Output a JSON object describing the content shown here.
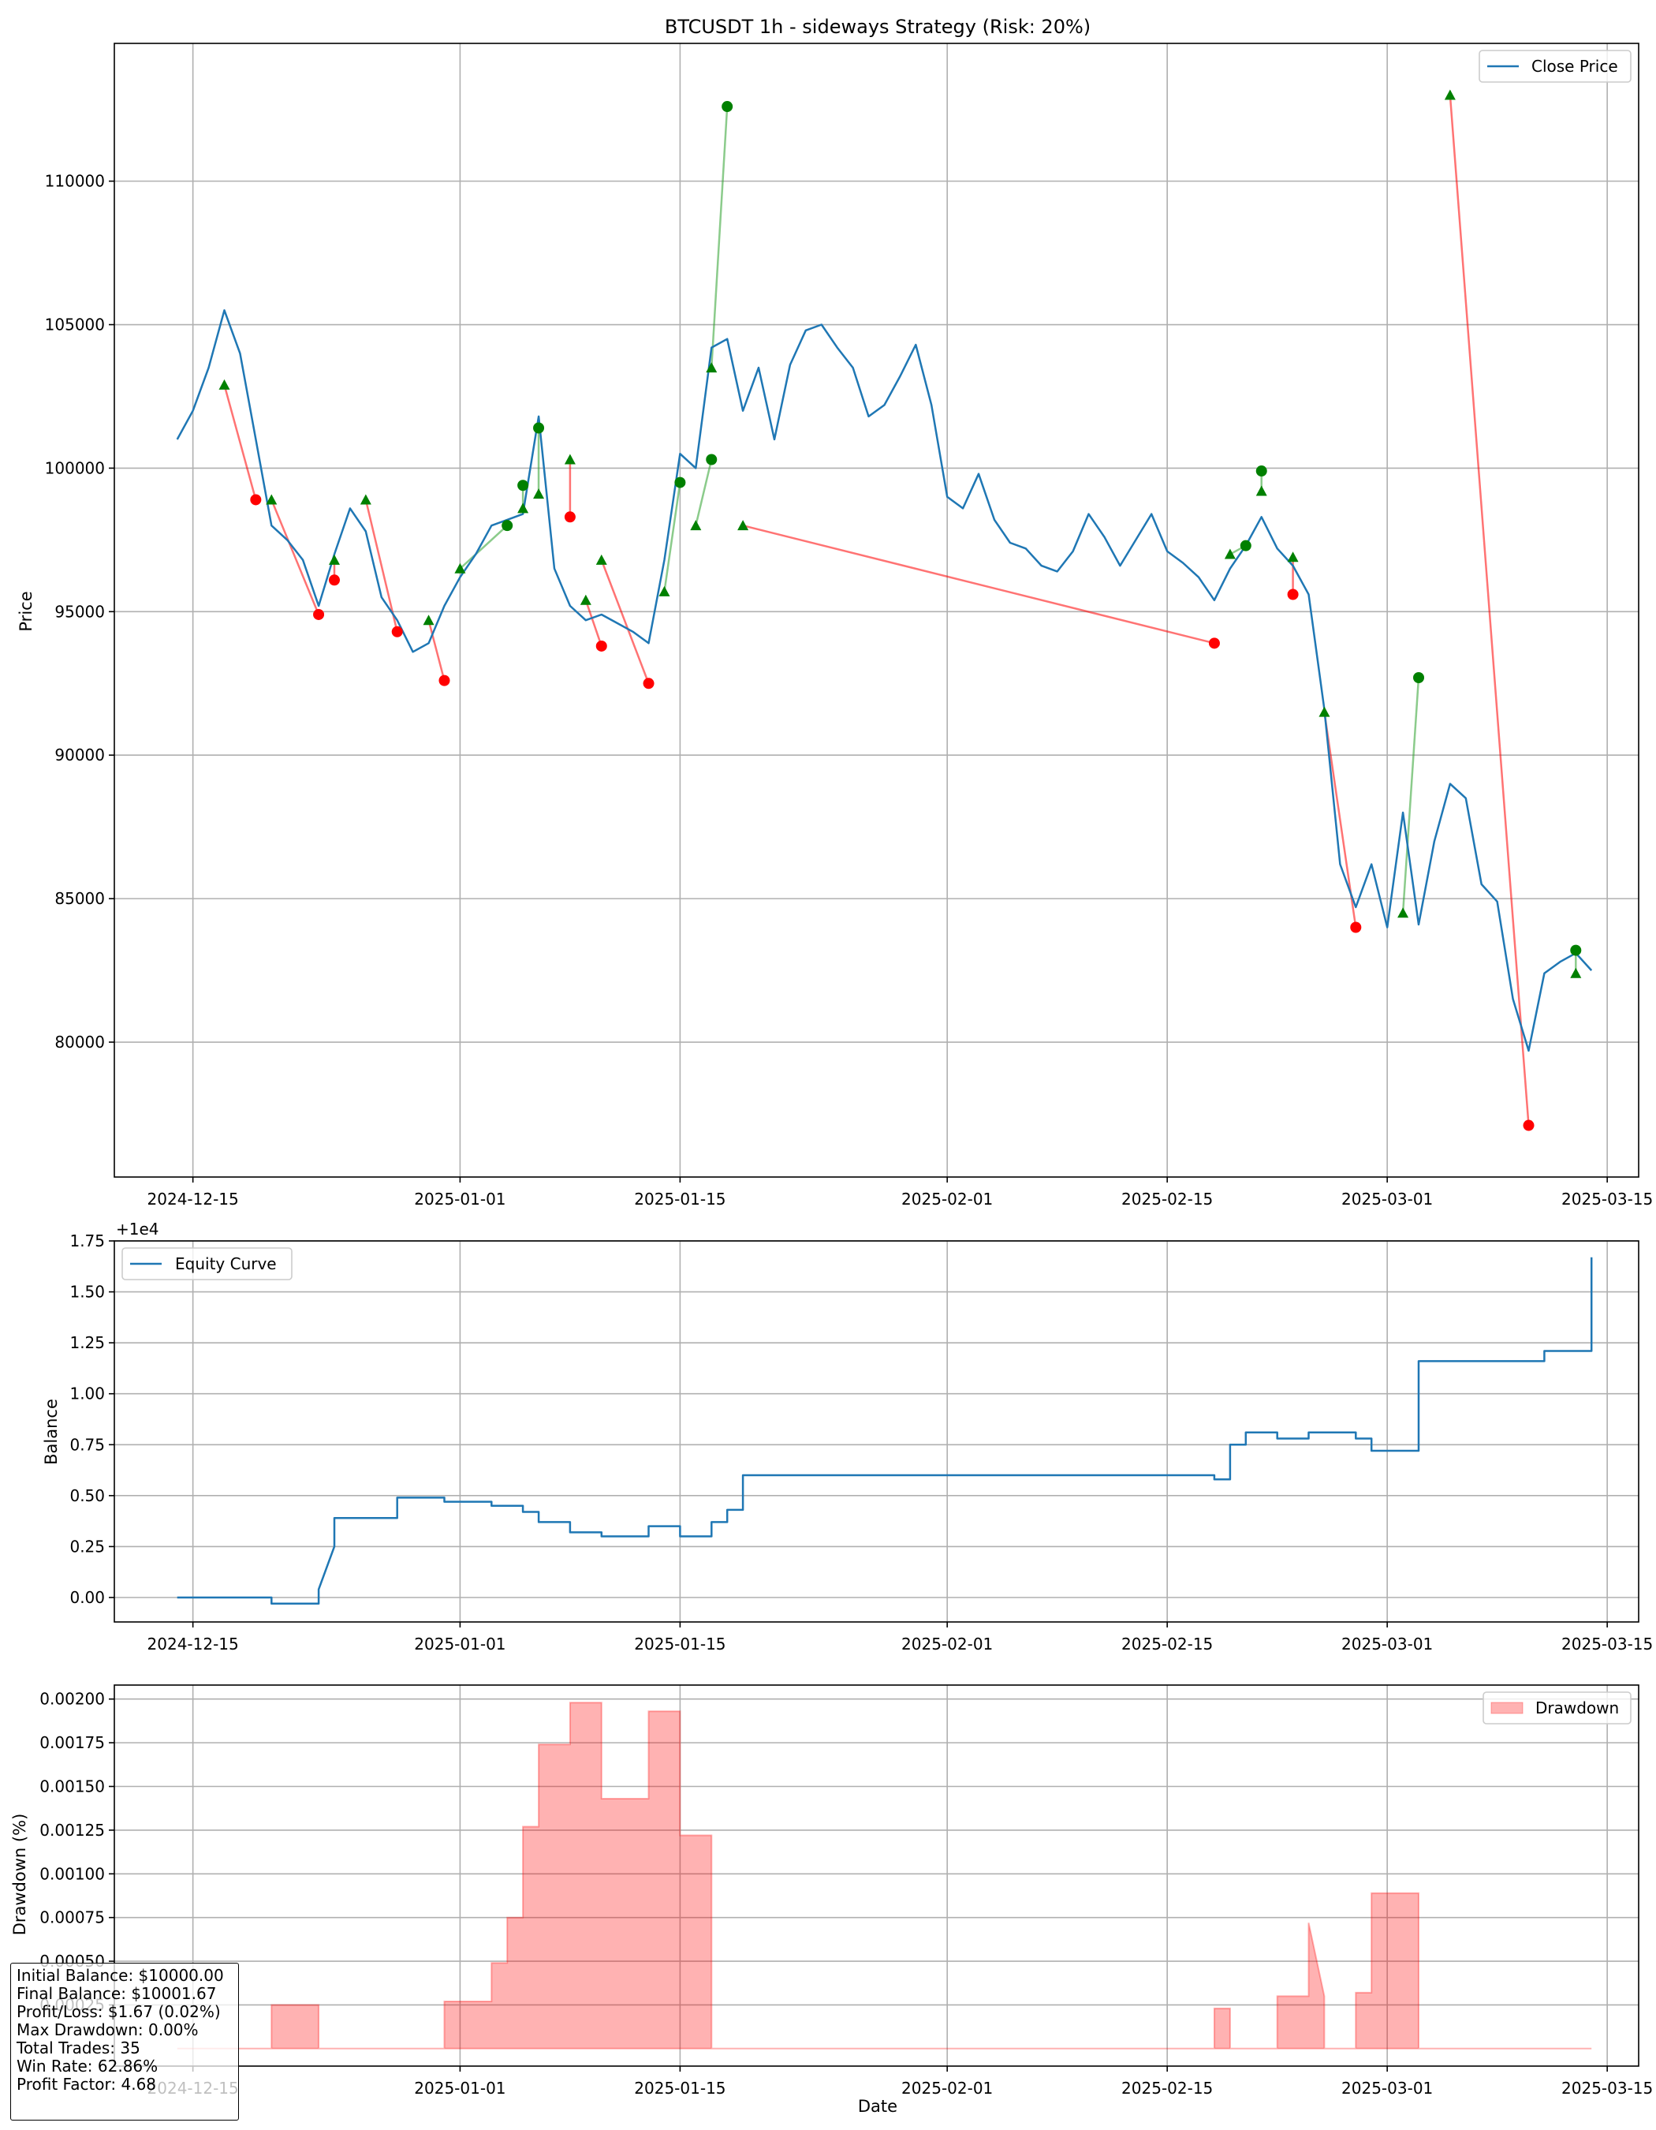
{
  "figure": {
    "title": "BTCUSDT 1h - sideways Strategy (Risk: 20%)"
  },
  "chart_data": [
    {
      "type": "line",
      "title": "BTCUSDT 1h - sideways Strategy (Risk: 20%)",
      "xlabel": "",
      "ylabel": "Price",
      "x_ticks": [
        "2024-12-15",
        "2025-01-01",
        "2025-01-15",
        "2025-02-01",
        "2025-02-15",
        "2025-03-01",
        "2025-03-15"
      ],
      "y_ticks": [
        "80000",
        "85000",
        "90000",
        "95000",
        "100000",
        "105000",
        "110000"
      ],
      "xlim": [
        "2024-12-10",
        "2025-03-17"
      ],
      "ylim": [
        75300,
        114800
      ],
      "grid": true,
      "legend": {
        "position": "top-right",
        "entries": [
          "Close Price"
        ]
      },
      "colors": {
        "price": "#1f77b4",
        "entry_marker": "#008000",
        "exit_marker": "#ff0000",
        "win_line": "#2ca02c",
        "loss_line": "#ff0000"
      },
      "series": [
        {
          "name": "Close Price",
          "x": [
            "2024-12-14",
            "2024-12-15",
            "2024-12-16",
            "2024-12-17",
            "2024-12-18",
            "2024-12-19",
            "2024-12-20",
            "2024-12-21",
            "2024-12-22",
            "2024-12-23",
            "2024-12-24",
            "2024-12-25",
            "2024-12-26",
            "2024-12-27",
            "2024-12-28",
            "2024-12-29",
            "2024-12-30",
            "2024-12-31",
            "2025-01-01",
            "2025-01-02",
            "2025-01-03",
            "2025-01-04",
            "2025-01-05",
            "2025-01-06",
            "2025-01-07",
            "2025-01-08",
            "2025-01-09",
            "2025-01-10",
            "2025-01-11",
            "2025-01-12",
            "2025-01-13",
            "2025-01-14",
            "2025-01-15",
            "2025-01-16",
            "2025-01-17",
            "2025-01-18",
            "2025-01-19",
            "2025-01-20",
            "2025-01-21",
            "2025-01-22",
            "2025-01-23",
            "2025-01-24",
            "2025-01-25",
            "2025-01-26",
            "2025-01-27",
            "2025-01-28",
            "2025-01-29",
            "2025-01-30",
            "2025-01-31",
            "2025-02-01",
            "2025-02-02",
            "2025-02-03",
            "2025-02-04",
            "2025-02-05",
            "2025-02-06",
            "2025-02-07",
            "2025-02-08",
            "2025-02-09",
            "2025-02-10",
            "2025-02-11",
            "2025-02-12",
            "2025-02-13",
            "2025-02-14",
            "2025-02-15",
            "2025-02-16",
            "2025-02-17",
            "2025-02-18",
            "2025-02-19",
            "2025-02-20",
            "2025-02-21",
            "2025-02-22",
            "2025-02-23",
            "2025-02-24",
            "2025-02-25",
            "2025-02-26",
            "2025-02-27",
            "2025-02-28",
            "2025-03-01",
            "2025-03-02",
            "2025-03-03",
            "2025-03-04",
            "2025-03-05",
            "2025-03-06",
            "2025-03-07",
            "2025-03-08",
            "2025-03-09",
            "2025-03-10",
            "2025-03-11",
            "2025-03-12",
            "2025-03-13",
            "2025-03-14"
          ],
          "values": [
            101000,
            102000,
            103500,
            105500,
            104000,
            101000,
            98000,
            97500,
            96800,
            95200,
            97000,
            98600,
            97800,
            95500,
            94700,
            93600,
            93900,
            95200,
            96200,
            97000,
            98000,
            98200,
            98400,
            101800,
            96500,
            95200,
            94700,
            94900,
            94600,
            94300,
            93900,
            96800,
            100500,
            100000,
            104200,
            104500,
            102000,
            103500,
            101000,
            103600,
            104800,
            105000,
            104200,
            103500,
            101800,
            102200,
            103200,
            104300,
            102200,
            99000,
            98600,
            99800,
            98200,
            97400,
            97200,
            96600,
            96400,
            97100,
            98400,
            97600,
            96600,
            97500,
            98400,
            97100,
            96700,
            96200,
            95400,
            96500,
            97300,
            98300,
            97200,
            96600,
            95600,
            91600,
            86200,
            84700,
            86200,
            84000,
            88000,
            84100,
            87000,
            89000,
            88500,
            85500,
            84900,
            81500,
            79700,
            82400,
            82800,
            83100,
            82500
          ]
        }
      ],
      "trades": [
        {
          "entry_x": "2024-12-17",
          "entry_price": 102900,
          "exit_x": "2024-12-19",
          "exit_price": 98900
        },
        {
          "entry_x": "2024-12-20",
          "entry_price": 98900,
          "exit_x": "2024-12-23",
          "exit_price": 94900
        },
        {
          "entry_x": "2024-12-24",
          "entry_price": 96800,
          "exit_x": "2024-12-24",
          "exit_price": 96100
        },
        {
          "entry_x": "2024-12-26",
          "entry_price": 98900,
          "exit_x": "2024-12-28",
          "exit_price": 94300
        },
        {
          "entry_x": "2024-12-30",
          "entry_price": 94700,
          "exit_x": "2024-12-31",
          "exit_price": 92600
        },
        {
          "entry_x": "2025-01-01",
          "entry_price": 96500,
          "exit_x": "2025-01-04",
          "exit_price": 98000
        },
        {
          "entry_x": "2025-01-05",
          "entry_price": 98600,
          "exit_x": "2025-01-05",
          "exit_price": 99400
        },
        {
          "entry_x": "2025-01-06",
          "entry_price": 99100,
          "exit_x": "2025-01-06",
          "exit_price": 101400
        },
        {
          "entry_x": "2025-01-08",
          "entry_price": 100300,
          "exit_x": "2025-01-08",
          "exit_price": 98300
        },
        {
          "entry_x": "2025-01-09",
          "entry_price": 95400,
          "exit_x": "2025-01-10",
          "exit_price": 93800
        },
        {
          "entry_x": "2025-01-10",
          "entry_price": 96800,
          "exit_x": "2025-01-13",
          "exit_price": 92500
        },
        {
          "entry_x": "2025-01-14",
          "entry_price": 95700,
          "exit_x": "2025-01-15",
          "exit_price": 99500
        },
        {
          "entry_x": "2025-01-16",
          "entry_price": 98000,
          "exit_x": "2025-01-17",
          "exit_price": 100300
        },
        {
          "entry_x": "2025-01-17",
          "entry_price": 103500,
          "exit_x": "2025-01-18",
          "exit_price": 112600
        },
        {
          "entry_x": "2025-01-19",
          "entry_price": 98000,
          "exit_x": "2025-02-18",
          "exit_price": 93900
        },
        {
          "entry_x": "2025-02-19",
          "entry_price": 97000,
          "exit_x": "2025-02-20",
          "exit_price": 97300
        },
        {
          "entry_x": "2025-02-21",
          "entry_price": 99200,
          "exit_x": "2025-02-21",
          "exit_price": 99900
        },
        {
          "entry_x": "2025-02-23",
          "entry_price": 96900,
          "exit_x": "2025-02-23",
          "exit_price": 95600
        },
        {
          "entry_x": "2025-02-25",
          "entry_price": 91500,
          "exit_x": "2025-02-27",
          "exit_price": 84000
        },
        {
          "entry_x": "2025-03-02",
          "entry_price": 84500,
          "exit_x": "2025-03-03",
          "exit_price": 92700
        },
        {
          "entry_x": "2025-03-05",
          "entry_price": 113000,
          "exit_x": "2025-03-10",
          "exit_price": 77100
        },
        {
          "entry_x": "2025-03-13",
          "entry_price": 82400,
          "exit_x": "2025-03-13",
          "exit_price": 83200
        }
      ]
    },
    {
      "type": "line",
      "title": "",
      "xlabel": "",
      "ylabel": "Balance",
      "offset_label": "+1e4",
      "x_ticks": [
        "2024-12-15",
        "2025-01-01",
        "2025-01-15",
        "2025-02-01",
        "2025-02-15",
        "2025-03-01",
        "2025-03-15"
      ],
      "y_ticks": [
        "0.00",
        "0.25",
        "0.50",
        "0.75",
        "1.00",
        "1.25",
        "1.50",
        "1.75"
      ],
      "xlim": [
        "2024-12-10",
        "2025-03-17"
      ],
      "ylim": [
        -0.12,
        1.75
      ],
      "grid": true,
      "legend": {
        "position": "top-left",
        "entries": [
          "Equity Curve"
        ]
      },
      "colors": {
        "line": "#1f77b4"
      },
      "series": [
        {
          "name": "Equity Curve",
          "x": [
            "2024-12-14",
            "2024-12-20",
            "2024-12-20",
            "2024-12-23",
            "2024-12-23",
            "2024-12-24",
            "2024-12-24",
            "2024-12-28",
            "2024-12-28",
            "2024-12-31",
            "2024-12-31",
            "2025-01-03",
            "2025-01-03",
            "2025-01-05",
            "2025-01-05",
            "2025-01-06",
            "2025-01-06",
            "2025-01-08",
            "2025-01-08",
            "2025-01-10",
            "2025-01-10",
            "2025-01-13",
            "2025-01-13",
            "2025-01-15",
            "2025-01-15",
            "2025-01-17",
            "2025-01-17",
            "2025-01-18",
            "2025-01-18",
            "2025-01-19",
            "2025-01-19",
            "2025-02-18",
            "2025-02-18",
            "2025-02-19",
            "2025-02-19",
            "2025-02-20",
            "2025-02-20",
            "2025-02-22",
            "2025-02-22",
            "2025-02-24",
            "2025-02-24",
            "2025-02-27",
            "2025-02-27",
            "2025-02-28",
            "2025-02-28",
            "2025-03-03",
            "2025-03-03",
            "2025-03-11",
            "2025-03-11",
            "2025-03-14",
            "2025-03-14"
          ],
          "values": [
            0.0,
            0.0,
            -0.03,
            -0.03,
            0.04,
            0.25,
            0.39,
            0.39,
            0.49,
            0.49,
            0.47,
            0.47,
            0.45,
            0.45,
            0.42,
            0.42,
            0.37,
            0.37,
            0.32,
            0.32,
            0.3,
            0.3,
            0.35,
            0.35,
            0.3,
            0.3,
            0.37,
            0.37,
            0.43,
            0.43,
            0.6,
            0.6,
            0.58,
            0.58,
            0.75,
            0.75,
            0.81,
            0.81,
            0.78,
            0.78,
            0.81,
            0.81,
            0.78,
            0.78,
            0.72,
            0.72,
            1.16,
            1.16,
            1.21,
            1.21,
            1.67
          ]
        }
      ]
    },
    {
      "type": "area",
      "title": "",
      "xlabel": "Date",
      "ylabel": "Drawdown (%)",
      "x_ticks": [
        "2024-12-15",
        "2025-01-01",
        "2025-01-15",
        "2025-02-01",
        "2025-02-15",
        "2025-03-01",
        "2025-03-15"
      ],
      "y_ticks": [
        "0.00025",
        "0.00050",
        "0.00075",
        "0.00100",
        "0.00125",
        "0.00150",
        "0.00175",
        "0.00200"
      ],
      "xlim": [
        "2024-12-10",
        "2025-03-17"
      ],
      "ylim": [
        -0.0001,
        0.00208
      ],
      "grid": true,
      "legend": {
        "position": "top-right",
        "entries": [
          "Drawdown"
        ]
      },
      "colors": {
        "fill": "#ff0000"
      },
      "series": [
        {
          "name": "Drawdown",
          "x": [
            "2024-12-14",
            "2024-12-20",
            "2024-12-20",
            "2024-12-23",
            "2024-12-23",
            "2024-12-31",
            "2024-12-31",
            "2025-01-03",
            "2025-01-03",
            "2025-01-04",
            "2025-01-04",
            "2025-01-05",
            "2025-01-05",
            "2025-01-06",
            "2025-01-06",
            "2025-01-08",
            "2025-01-08",
            "2025-01-10",
            "2025-01-10",
            "2025-01-13",
            "2025-01-13",
            "2025-01-15",
            "2025-01-15",
            "2025-01-17",
            "2025-01-17",
            "2025-01-17",
            "2025-01-17",
            "2025-01-18",
            "2025-01-18",
            "2025-01-19",
            "2025-01-19",
            "2025-02-18",
            "2025-02-18",
            "2025-02-19",
            "2025-02-19",
            "2025-02-22",
            "2025-02-22",
            "2025-02-24",
            "2025-02-24",
            "2025-02-25",
            "2025-02-25",
            "2025-02-27",
            "2025-02-27",
            "2025-02-28",
            "2025-02-28",
            "2025-03-03",
            "2025-03-03",
            "2025-03-14"
          ],
          "values": [
            0,
            0,
            0.00025,
            0.00025,
            0,
            0,
            0.00027,
            0.00027,
            0.00049,
            0.00049,
            0.00075,
            0.00075,
            0.00127,
            0.00127,
            0.00174,
            0.00174,
            0.00198,
            0.00198,
            0.00143,
            0.00143,
            0.00193,
            0.00193,
            0.00122,
            0.00122,
            0.00069,
            0.00069,
            0,
            0,
            0,
            0,
            0,
            0,
            0.00023,
            0.00023,
            0,
            0,
            0.0003,
            0.0003,
            0.00072,
            0.0003,
            0,
            0,
            0.00032,
            0.00032,
            0.00089,
            0.00089,
            0,
            0
          ]
        }
      ]
    }
  ],
  "stats_box": {
    "lines": [
      "Initial Balance: $10000.00",
      "Final Balance: $10001.67",
      "Profit/Loss: $1.67 (0.02%)",
      "Max Drawdown: 0.00%",
      "Total Trades: 35",
      "Win Rate: 62.86%",
      "Profit Factor: 4.68"
    ]
  }
}
